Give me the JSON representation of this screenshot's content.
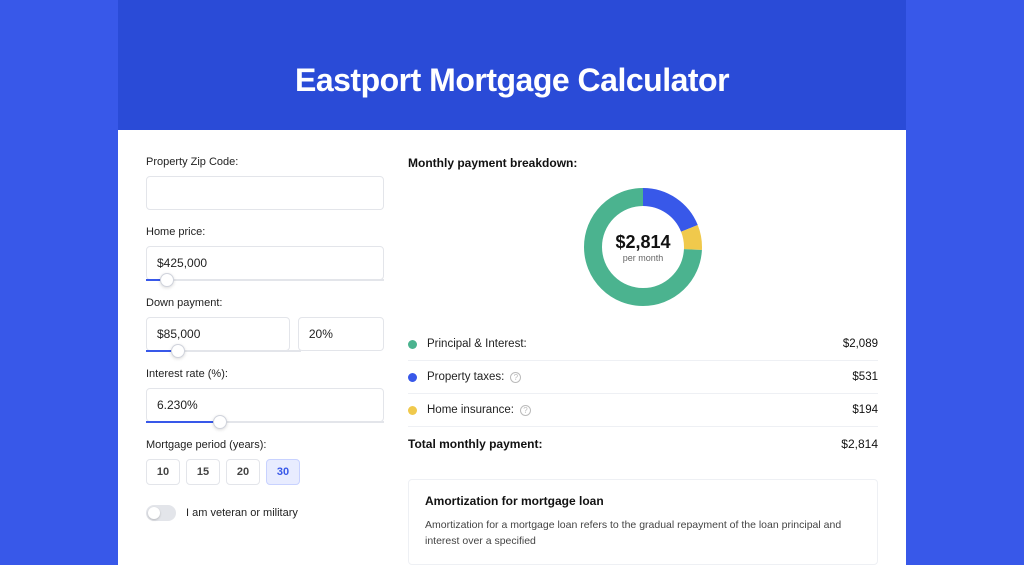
{
  "page": {
    "title": "Eastport Mortgage Calculator",
    "background_color": "#3858e9",
    "band_color": "#2a4bd7",
    "card_color": "#ffffff"
  },
  "form": {
    "zip": {
      "label": "Property Zip Code:",
      "value": ""
    },
    "home_price": {
      "label": "Home price:",
      "value": "$425,000",
      "slider_pct": 9
    },
    "down_payment": {
      "label": "Down payment:",
      "value": "$85,000",
      "pct_value": "20%",
      "slider_pct": 21
    },
    "interest_rate": {
      "label": "Interest rate (%):",
      "value": "6.230%",
      "slider_pct": 31
    },
    "period": {
      "label": "Mortgage period (years):",
      "options": [
        "10",
        "15",
        "20",
        "30"
      ],
      "selected": "30"
    },
    "veteran": {
      "label": "I am veteran or military",
      "checked": false
    }
  },
  "breakdown": {
    "title": "Monthly payment breakdown:",
    "center_value": "$2,814",
    "center_sub": "per month",
    "items": [
      {
        "label": "Principal & Interest:",
        "value": "$2,089",
        "color": "#4bb38f",
        "has_info": false,
        "pct": 74.2
      },
      {
        "label": "Property taxes:",
        "value": "$531",
        "color": "#3858e9",
        "has_info": true,
        "pct": 18.9
      },
      {
        "label": "Home insurance:",
        "value": "$194",
        "color": "#f0c94c",
        "has_info": true,
        "pct": 6.9
      }
    ],
    "total": {
      "label": "Total monthly payment:",
      "value": "$2,814"
    }
  },
  "amortization": {
    "title": "Amortization for mortgage loan",
    "text": "Amortization for a mortgage loan refers to the gradual repayment of the loan principal and interest over a specified"
  },
  "donut_style": {
    "stroke_width": 18
  }
}
